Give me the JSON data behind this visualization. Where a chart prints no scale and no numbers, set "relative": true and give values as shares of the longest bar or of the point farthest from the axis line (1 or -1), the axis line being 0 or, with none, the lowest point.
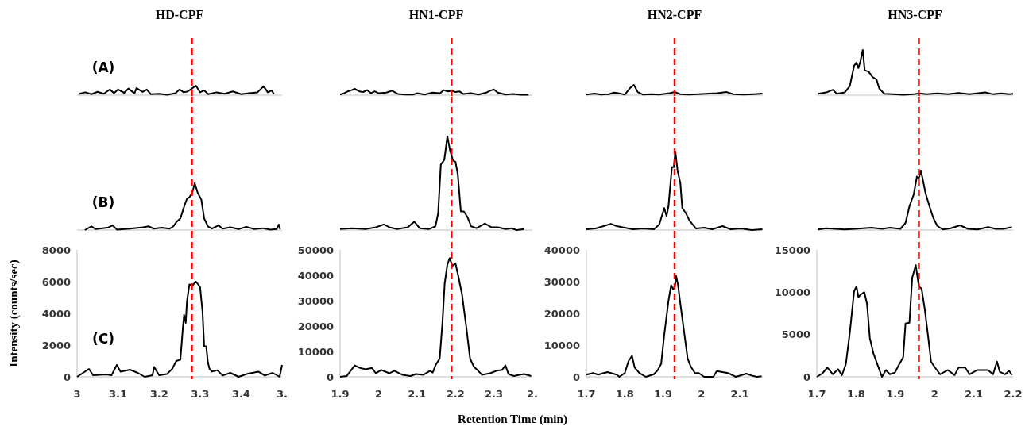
{
  "chart_data": [
    {
      "type": "line",
      "title": "HD-CPF",
      "relative": true,
      "color": "#000000",
      "xlim": [
        3,
        3.5
      ],
      "annotations": [
        "(A)"
      ],
      "ref_lines": [
        {
          "axis": "x",
          "value": 3.28,
          "color": "#ff0000",
          "line_style": "dashed"
        }
      ],
      "x": [
        3.006,
        3.02,
        3.035,
        3.05,
        3.065,
        3.08,
        3.09,
        3.1,
        3.115,
        3.125,
        3.14,
        3.145,
        3.16,
        3.17,
        3.18,
        3.2,
        3.22,
        3.24,
        3.25,
        3.26,
        3.27,
        3.28,
        3.29,
        3.3,
        3.31,
        3.32,
        3.34,
        3.36,
        3.38,
        3.4,
        3.42,
        3.44,
        3.455,
        3.465,
        3.475,
        3.48
      ],
      "values": [
        0.14,
        0.3,
        0.1,
        0.35,
        0.15,
        0.6,
        0.2,
        0.6,
        0.25,
        0.7,
        0.2,
        0.75,
        0.35,
        0.6,
        0.1,
        0.15,
        0.05,
        0.2,
        0.6,
        0.3,
        0.4,
        0.7,
        1,
        0.3,
        0.5,
        0.1,
        0.3,
        0.15,
        0.4,
        0.1,
        0.2,
        0.3,
        0.95,
        0.3,
        0.5,
        0.1
      ]
    },
    {
      "type": "line",
      "title": "HN1-CPF",
      "relative": true,
      "color": "#000000",
      "xlim": [
        1.9,
        2.4
      ],
      "ref_lines": [
        {
          "axis": "x",
          "value": 2.19,
          "color": "#ff0000",
          "line_style": "dashed"
        }
      ],
      "x": [
        1.9,
        1.91,
        1.92,
        1.93,
        1.938,
        1.95,
        1.96,
        1.97,
        1.98,
        1.99,
        2.0,
        2.02,
        2.035,
        2.05,
        2.07,
        2.09,
        2.1,
        2.12,
        2.14,
        2.16,
        2.17,
        2.18,
        2.19,
        2.2,
        2.21,
        2.22,
        2.24,
        2.26,
        2.28,
        2.29,
        2.3,
        2.31,
        2.33,
        2.35,
        2.37,
        2.39
      ],
      "values": [
        0.1,
        0.3,
        0.6,
        0.8,
        1,
        0.6,
        0.5,
        0.8,
        0.3,
        0.6,
        0.3,
        0.4,
        0.7,
        0.2,
        0.1,
        0.1,
        0.3,
        0.1,
        0.4,
        0.3,
        0.8,
        0.6,
        0.7,
        0.5,
        0.6,
        0.2,
        0.3,
        0.1,
        0.4,
        0.7,
        0.9,
        0.4,
        0.1,
        0.2,
        0.05,
        0.05
      ]
    },
    {
      "type": "line",
      "title": "HN2-CPF",
      "relative": true,
      "color": "#000000",
      "xlim": [
        1.7,
        2.16
      ],
      "ref_lines": [
        {
          "axis": "x",
          "value": 1.93,
          "color": "#ff0000",
          "line_style": "dashed"
        }
      ],
      "x": [
        1.7,
        1.721,
        1.738,
        1.759,
        1.772,
        1.783,
        1.8,
        1.814,
        1.824,
        1.834,
        1.848,
        1.869,
        1.89,
        1.917,
        1.931,
        1.945,
        1.966,
        1.993,
        2.021,
        2.041,
        2.066,
        2.083,
        2.11,
        2.138,
        2.159
      ],
      "values": [
        0.05,
        0.15,
        0.05,
        0.1,
        0.25,
        0.2,
        0.05,
        0.7,
        1,
        0.3,
        0.05,
        0.1,
        0.05,
        0.2,
        0.3,
        0.1,
        0.05,
        0.1,
        0.15,
        0.2,
        0.3,
        0.1,
        0.05,
        0.1,
        0.15
      ]
    },
    {
      "type": "line",
      "title": "HN3-CPF",
      "relative": true,
      "color": "#000000",
      "xlim": [
        1.7,
        2.2
      ],
      "ref_lines": [
        {
          "axis": "x",
          "value": 1.96,
          "color": "#ff0000",
          "line_style": "dashed"
        }
      ],
      "x": [
        1.703,
        1.724,
        1.741,
        1.751,
        1.771,
        1.784,
        1.795,
        1.801,
        1.806,
        1.811,
        1.817,
        1.822,
        1.832,
        1.842,
        1.852,
        1.859,
        1.872,
        1.893,
        1.92,
        1.947,
        1.96,
        1.98,
        2.007,
        2.034,
        2.061,
        2.089,
        2.129,
        2.149,
        2.17,
        2.19,
        2.2
      ],
      "values": [
        0.03,
        0.06,
        0.12,
        0.03,
        0.06,
        0.2,
        0.65,
        0.72,
        0.6,
        0.75,
        1,
        0.55,
        0.52,
        0.4,
        0.35,
        0.15,
        0.03,
        0.02,
        0.01,
        0.02,
        0.04,
        0.02,
        0.04,
        0.02,
        0.05,
        0.02,
        0.06,
        0.02,
        0.04,
        0.02,
        0.03
      ]
    },
    {
      "type": "line",
      "relative": true,
      "color": "#000000",
      "xlim": [
        3,
        3.5
      ],
      "annotations": [
        "(B)"
      ],
      "ref_lines": [
        {
          "axis": "x",
          "value": 3.28,
          "color": "#ff0000",
          "line_style": "dashed"
        }
      ],
      "x": [
        3.019,
        3.035,
        3.045,
        3.074,
        3.087,
        3.097,
        3.129,
        3.161,
        3.174,
        3.187,
        3.206,
        3.226,
        3.235,
        3.242,
        3.252,
        3.261,
        3.268,
        3.274,
        3.281,
        3.287,
        3.294,
        3.303,
        3.31,
        3.319,
        3.329,
        3.345,
        3.355,
        3.374,
        3.394,
        3.413,
        3.432,
        3.452,
        3.471,
        3.487,
        3.492,
        3.495
      ],
      "values": [
        0,
        0.08,
        0.02,
        0.05,
        0.1,
        0.01,
        0.03,
        0.06,
        0.08,
        0.03,
        0.05,
        0.03,
        0.08,
        0.17,
        0.25,
        0.5,
        0.67,
        0.7,
        0.8,
        1,
        0.8,
        0.65,
        0.25,
        0.08,
        0.03,
        0.1,
        0.03,
        0.06,
        0.02,
        0.07,
        0.02,
        0.04,
        0.01,
        0.02,
        0.12,
        0.02
      ]
    },
    {
      "type": "line",
      "relative": true,
      "color": "#000000",
      "xlim": [
        1.9,
        2.4
      ],
      "ref_lines": [
        {
          "axis": "x",
          "value": 2.19,
          "color": "#ff0000",
          "line_style": "dashed"
        }
      ],
      "x": [
        1.9,
        1.931,
        1.966,
        1.993,
        2.014,
        2.028,
        2.048,
        2.076,
        2.093,
        2.107,
        2.131,
        2.148,
        2.155,
        2.162,
        2.171,
        2.179,
        2.186,
        2.194,
        2.2,
        2.206,
        2.214,
        2.222,
        2.231,
        2.241,
        2.255,
        2.277,
        2.293,
        2.31,
        2.331,
        2.345,
        2.359,
        2.379
      ],
      "values": [
        0.01,
        0.02,
        0.01,
        0.03,
        0.06,
        0.03,
        0.01,
        0.03,
        0.09,
        0.02,
        0.01,
        0.04,
        0.18,
        0.7,
        0.75,
        1,
        0.85,
        0.74,
        0.73,
        0.6,
        0.2,
        0.2,
        0.14,
        0.04,
        0.02,
        0.07,
        0.03,
        0.03,
        0.01,
        0.02,
        0,
        0.01
      ]
    },
    {
      "type": "line",
      "relative": true,
      "color": "#000000",
      "xlim": [
        1.7,
        2.16
      ],
      "ref_lines": [
        {
          "axis": "x",
          "value": 1.93,
          "color": "#ff0000",
          "line_style": "dashed"
        }
      ],
      "x": [
        1.7,
        1.724,
        1.745,
        1.764,
        1.779,
        1.8,
        1.821,
        1.848,
        1.876,
        1.89,
        1.903,
        1.909,
        1.914,
        1.923,
        1.928,
        1.932,
        1.938,
        1.945,
        1.95,
        1.959,
        1.969,
        1.986,
        2.007,
        2.028,
        2.055,
        2.076,
        2.103,
        2.131,
        2.159
      ],
      "values": [
        0.01,
        0.02,
        0.05,
        0.08,
        0.05,
        0.03,
        0.01,
        0.02,
        0.01,
        0.07,
        0.28,
        0.18,
        0.3,
        0.8,
        0.8,
        1,
        0.75,
        0.6,
        0.28,
        0.22,
        0.12,
        0.02,
        0.03,
        0.01,
        0.05,
        0.01,
        0.02,
        0,
        0.01
      ]
    },
    {
      "type": "line",
      "relative": true,
      "color": "#000000",
      "xlim": [
        1.7,
        2.2
      ],
      "ref_lines": [
        {
          "axis": "x",
          "value": 1.96,
          "color": "#ff0000",
          "line_style": "dashed"
        }
      ],
      "x": [
        1.703,
        1.724,
        1.747,
        1.771,
        1.798,
        1.839,
        1.866,
        1.886,
        1.913,
        1.926,
        1.936,
        1.947,
        1.955,
        1.96,
        1.965,
        1.97,
        1.977,
        1.987,
        1.997,
        2.007,
        2.021,
        2.041,
        2.065,
        2.085,
        2.109,
        2.136,
        2.156,
        2.176,
        2.197
      ],
      "values": [
        0.01,
        0.03,
        0.02,
        0.01,
        0.02,
        0.04,
        0.02,
        0.04,
        0.02,
        0.12,
        0.4,
        0.6,
        0.9,
        0.87,
        1,
        0.85,
        0.62,
        0.4,
        0.2,
        0.07,
        0.01,
        0.03,
        0.08,
        0.02,
        0.01,
        0.05,
        0.02,
        0.02,
        0.05
      ]
    },
    {
      "type": "line",
      "color": "#000000",
      "ylabel": "Intensity (counts/sec)",
      "annotations": [
        "(C)"
      ],
      "xlim": [
        3,
        3.5
      ],
      "xticks": [
        3,
        3.1,
        3.2,
        3.3,
        3.4,
        {
          "value": 3.5,
          "label": "3."
        }
      ],
      "ylim": [
        0,
        8000
      ],
      "yticks": [
        0,
        2000,
        4000,
        6000,
        8000
      ],
      "ref_lines": [
        {
          "axis": "x",
          "value": 3.28,
          "color": "#ff0000",
          "line_style": "dashed"
        }
      ],
      "x": [
        3.0,
        3.006,
        3.029,
        3.039,
        3.071,
        3.084,
        3.097,
        3.106,
        3.129,
        3.148,
        3.165,
        3.184,
        3.188,
        3.2,
        3.219,
        3.232,
        3.242,
        3.252,
        3.258,
        3.261,
        3.265,
        3.268,
        3.274,
        3.281,
        3.29,
        3.3,
        3.306,
        3.31,
        3.315,
        3.319,
        3.323,
        3.329,
        3.342,
        3.355,
        3.374,
        3.394,
        3.413,
        3.442,
        3.458,
        3.477,
        3.494,
        3.5
      ],
      "values": [
        0,
        100,
        500,
        100,
        150,
        100,
        750,
        330,
        450,
        250,
        0,
        100,
        620,
        100,
        170,
        500,
        1000,
        1080,
        3080,
        3900,
        3400,
        4750,
        5830,
        5750,
        6000,
        5670,
        4080,
        1920,
        1920,
        920,
        500,
        330,
        420,
        80,
        250,
        0,
        170,
        330,
        80,
        250,
        0,
        750
      ]
    },
    {
      "type": "line",
      "color": "#000000",
      "xlabel": "Retention Time (min)",
      "xlim": [
        1.9,
        2.4
      ],
      "xticks": [
        1.9,
        2,
        2.1,
        2.2,
        2.3,
        {
          "value": 2.4,
          "label": "2."
        }
      ],
      "ylim": [
        0,
        50000
      ],
      "yticks": [
        0,
        10000,
        20000,
        30000,
        40000,
        50000
      ],
      "ref_lines": [
        {
          "axis": "x",
          "value": 2.19,
          "color": "#ff0000",
          "line_style": "dashed"
        }
      ],
      "x": [
        1.9,
        1.917,
        1.938,
        1.952,
        1.966,
        1.983,
        1.993,
        2.007,
        2.028,
        2.041,
        2.062,
        2.083,
        2.097,
        2.117,
        2.134,
        2.141,
        2.148,
        2.159,
        2.166,
        2.172,
        2.179,
        2.185,
        2.192,
        2.2,
        2.207,
        2.217,
        2.228,
        2.238,
        2.248,
        2.259,
        2.269,
        2.29,
        2.307,
        2.321,
        2.33,
        2.338,
        2.352,
        2.366,
        2.379,
        2.397
      ],
      "values": [
        0,
        300,
        4500,
        3500,
        3000,
        3500,
        1400,
        2700,
        1400,
        2400,
        800,
        300,
        1100,
        800,
        2400,
        1700,
        4500,
        7200,
        20900,
        36800,
        44200,
        46800,
        43700,
        44700,
        40000,
        32600,
        19900,
        7200,
        4000,
        2400,
        800,
        1400,
        2400,
        2700,
        4500,
        1100,
        300,
        800,
        1100,
        300
      ]
    },
    {
      "type": "line",
      "color": "#000000",
      "xlim": [
        1.7,
        2.16
      ],
      "xticks": [
        1.7,
        1.8,
        1.9,
        2,
        2.1
      ],
      "ylim": [
        0,
        40000
      ],
      "yticks": [
        0,
        10000,
        20000,
        30000,
        40000
      ],
      "ref_lines": [
        {
          "axis": "x",
          "value": 1.93,
          "color": "#ff0000",
          "line_style": "dashed"
        }
      ],
      "x": [
        1.7,
        1.717,
        1.731,
        1.755,
        1.779,
        1.786,
        1.8,
        1.81,
        1.819,
        1.826,
        1.838,
        1.855,
        1.876,
        1.886,
        1.895,
        1.903,
        1.914,
        1.921,
        1.926,
        1.931,
        1.934,
        1.939,
        1.945,
        1.955,
        1.964,
        1.972,
        1.983,
        1.993,
        2.007,
        2.031,
        2.04,
        2.055,
        2.069,
        2.09,
        2.117,
        2.131,
        2.145,
        2.157
      ],
      "values": [
        700,
        1200,
        700,
        1500,
        700,
        0,
        1200,
        5000,
        6600,
        2900,
        1200,
        0,
        800,
        2100,
        4100,
        13200,
        23900,
        28900,
        27600,
        28500,
        31800,
        28900,
        23100,
        14000,
        5800,
        3300,
        1200,
        1200,
        0,
        0,
        1800,
        1500,
        1200,
        0,
        1000,
        400,
        0,
        200
      ]
    },
    {
      "type": "line",
      "color": "#000000",
      "xlim": [
        1.7,
        2.2
      ],
      "xticks": [
        1.7,
        1.8,
        1.9,
        2,
        2.1,
        2.2
      ],
      "ylim": [
        0,
        15000
      ],
      "yticks": [
        0,
        5000,
        10000,
        15000
      ],
      "ref_lines": [
        {
          "axis": "x",
          "value": 1.96,
          "color": "#ff0000",
          "line_style": "dashed"
        }
      ],
      "x": [
        1.7,
        1.714,
        1.727,
        1.741,
        1.754,
        1.764,
        1.774,
        1.784,
        1.795,
        1.801,
        1.806,
        1.811,
        1.821,
        1.828,
        1.835,
        1.844,
        1.855,
        1.866,
        1.876,
        1.886,
        1.899,
        1.909,
        1.92,
        1.926,
        1.936,
        1.943,
        1.952,
        1.96,
        1.967,
        1.975,
        1.984,
        1.991,
        2.001,
        2.014,
        2.034,
        2.051,
        2.061,
        2.078,
        2.089,
        2.109,
        2.136,
        2.149,
        2.159,
        2.166,
        2.18,
        2.19,
        2.197
      ],
      "values": [
        0,
        400,
        1100,
        300,
        900,
        200,
        1500,
        5200,
        10100,
        10700,
        9400,
        9700,
        10000,
        8600,
        4600,
        2800,
        1400,
        0,
        800,
        300,
        500,
        1400,
        2300,
        6300,
        6400,
        11700,
        13200,
        10700,
        10400,
        8000,
        4600,
        1800,
        1100,
        300,
        800,
        200,
        1100,
        1100,
        300,
        800,
        800,
        300,
        1800,
        600,
        300,
        700,
        200
      ]
    }
  ]
}
